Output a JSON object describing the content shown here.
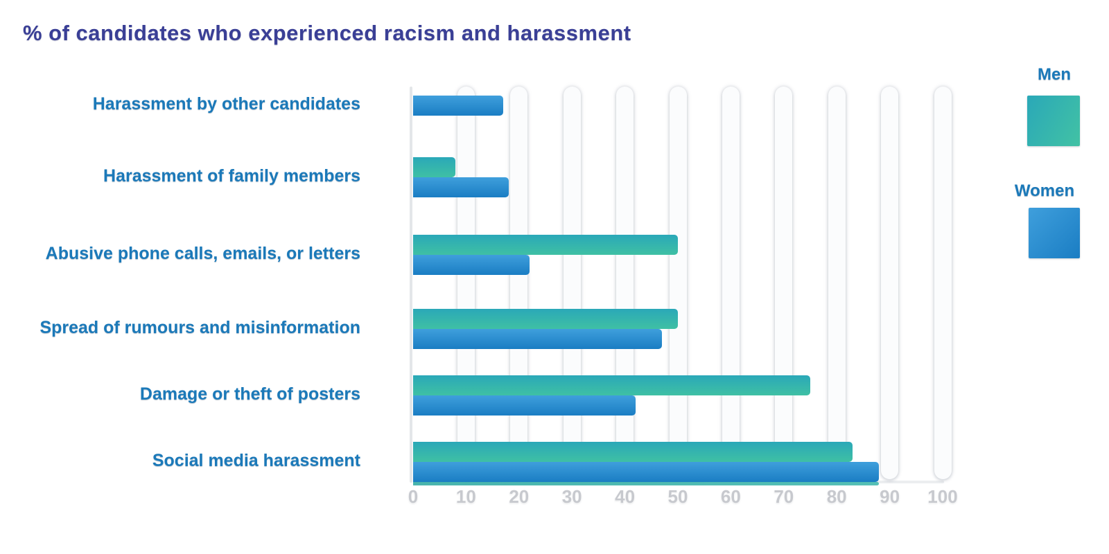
{
  "title": "% of candidates who experienced racism and harassment",
  "legend": {
    "men_label": "Men",
    "women_label": "Women"
  },
  "colors": {
    "title": "#3a3f96",
    "category_label": "#1b79b9",
    "men_gradient_start": "#2aa8b8",
    "men_gradient_end": "#3fc0a4",
    "men_legend_end": "#42c2a4",
    "women_gradient_start": "#3f9fdc",
    "women_gradient_end": "#1a7dc3",
    "tick_label": "#c7c9ce",
    "gridline": "#fbfcfd"
  },
  "chart_data": {
    "type": "bar",
    "orientation": "horizontal",
    "title": "% of candidates who experienced racism and harassment",
    "categories": [
      "Harassment by other candidates",
      "Harassment of family members",
      "Abusive phone calls, emails, or letters",
      "Spread of rumours and misinformation",
      "Damage or theft of posters",
      "Social media harassment"
    ],
    "series": [
      {
        "name": "Men",
        "values": [
          null,
          8,
          50,
          50,
          75,
          83
        ]
      },
      {
        "name": "Women",
        "values": [
          17,
          18,
          22,
          47,
          42,
          88
        ]
      }
    ],
    "xlabel": "",
    "ylabel": "",
    "xlim": [
      0,
      100
    ],
    "xticks": [
      0,
      10,
      20,
      30,
      40,
      50,
      60,
      70,
      80,
      90,
      100
    ],
    "grid": "vertical-white-capsules",
    "legend_position": "right"
  }
}
